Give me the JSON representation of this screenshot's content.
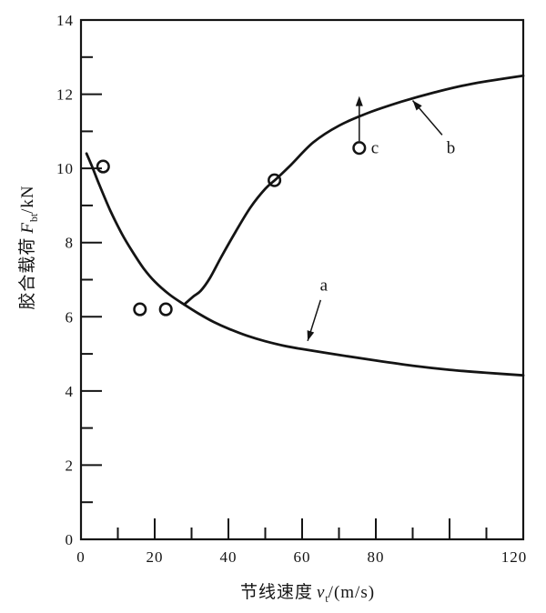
{
  "figure": {
    "background": "#ffffff",
    "ink": "#141414"
  },
  "chart_data": {
    "type": "line",
    "title": "",
    "xlabel": {
      "prefix": "节线速度",
      "symbol": "v",
      "sub": "t",
      "suffix": "/(m/s)"
    },
    "ylabel": {
      "prefix": "胶合载荷",
      "symbol": "F",
      "sub": "bt",
      "suffix": "/kN"
    },
    "xlim": [
      0,
      120
    ],
    "ylim": [
      0,
      14
    ],
    "grid": false,
    "legend": "none",
    "x_ticks": {
      "major": [
        {
          "v": 0,
          "label": "0"
        },
        {
          "v": 20,
          "label": "20"
        },
        {
          "v": 40,
          "label": "40"
        },
        {
          "v": 60,
          "label": "60"
        },
        {
          "v": 80,
          "label": "80"
        },
        {
          "v": 100,
          "label": ""
        },
        {
          "v": 120,
          "label": "120",
          "dx": -10
        }
      ],
      "minor": [
        10,
        30,
        50,
        70,
        90,
        110
      ]
    },
    "y_ticks": {
      "major": [
        {
          "v": 0,
          "label": "0"
        },
        {
          "v": 2,
          "label": "2"
        },
        {
          "v": 4,
          "label": "4"
        },
        {
          "v": 6,
          "label": "6"
        },
        {
          "v": 8,
          "label": "8"
        },
        {
          "v": 10,
          "label": "10"
        },
        {
          "v": 12,
          "label": "12"
        },
        {
          "v": 14,
          "label": "14"
        }
      ],
      "minor": [
        1,
        3,
        5,
        7,
        9,
        11,
        13
      ]
    },
    "series": [
      {
        "id": "a",
        "label": "a",
        "points": [
          [
            1.5,
            10.4
          ],
          [
            3,
            10.05
          ],
          [
            5,
            9.55
          ],
          [
            8,
            8.85
          ],
          [
            11,
            8.25
          ],
          [
            14,
            7.75
          ],
          [
            17,
            7.3
          ],
          [
            20,
            6.95
          ],
          [
            24,
            6.6
          ],
          [
            28,
            6.33
          ],
          [
            32,
            6.08
          ],
          [
            36,
            5.86
          ],
          [
            40,
            5.68
          ],
          [
            45,
            5.49
          ],
          [
            50,
            5.34
          ],
          [
            55,
            5.22
          ],
          [
            60,
            5.13
          ],
          [
            70,
            4.97
          ],
          [
            80,
            4.82
          ],
          [
            90,
            4.68
          ],
          [
            100,
            4.57
          ],
          [
            110,
            4.49
          ],
          [
            120,
            4.42
          ]
        ]
      },
      {
        "id": "b",
        "label": "b",
        "points": [
          [
            28,
            6.33
          ],
          [
            30.5,
            6.55
          ],
          [
            32.5,
            6.7
          ],
          [
            35,
            7.05
          ],
          [
            38,
            7.6
          ],
          [
            42,
            8.3
          ],
          [
            46,
            8.95
          ],
          [
            50,
            9.45
          ],
          [
            53,
            9.72
          ],
          [
            57,
            10.1
          ],
          [
            63,
            10.7
          ],
          [
            70,
            11.15
          ],
          [
            78,
            11.5
          ],
          [
            87,
            11.8
          ],
          [
            96,
            12.05
          ],
          [
            106,
            12.28
          ],
          [
            120,
            12.5
          ]
        ]
      }
    ],
    "data_points": [
      [
        6,
        10.05
      ],
      [
        16,
        6.2
      ],
      [
        23,
        6.2
      ],
      [
        52.5,
        9.68
      ]
    ],
    "censored_point": {
      "x": 75.5,
      "y": 10.55,
      "label": "c",
      "arrow_top_y": 11.95
    },
    "annotations": [
      {
        "text": "a",
        "tx": 66,
        "ty": 6.85,
        "from": [
          65,
          6.45
        ],
        "to": [
          61.5,
          5.35
        ]
      },
      {
        "text": "b",
        "tx": 100.5,
        "ty": 10.55,
        "from": [
          98,
          10.9
        ],
        "to": [
          90,
          11.83
        ]
      }
    ]
  }
}
